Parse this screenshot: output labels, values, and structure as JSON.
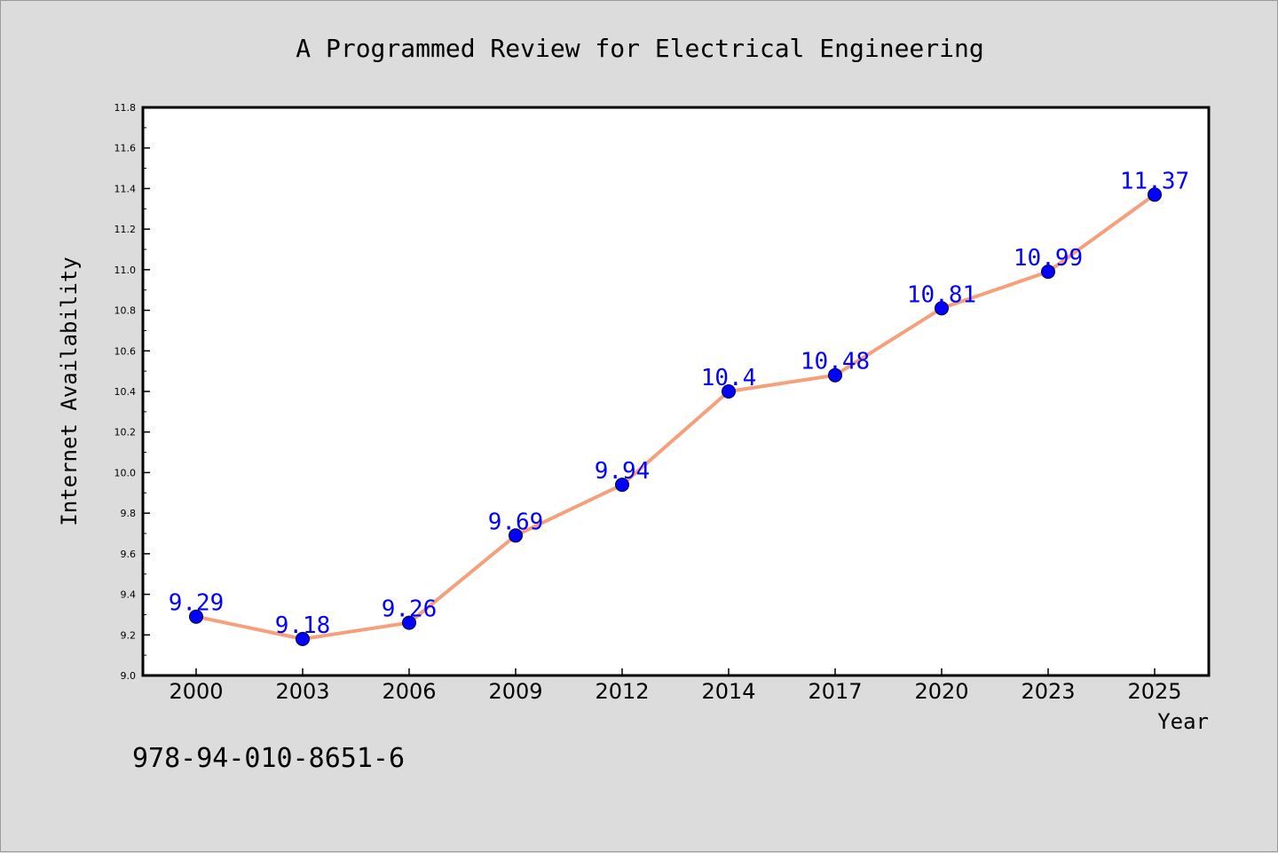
{
  "chart_data": {
    "type": "line",
    "title": "A Programmed Review for Electrical Engineering",
    "xlabel": "Year",
    "ylabel": "Internet Availability",
    "categories": [
      "2000",
      "2003",
      "2006",
      "2009",
      "2012",
      "2014",
      "2017",
      "2020",
      "2023",
      "2025"
    ],
    "series": [
      {
        "values": [
          9.29,
          9.18,
          9.26,
          9.69,
          9.94,
          10.4,
          10.48,
          10.81,
          10.99,
          11.37
        ]
      }
    ],
    "data_labels": [
      "9.29",
      "9.18",
      "9.26",
      "9.69",
      "9.94",
      "10.4",
      "10.48",
      "10.81",
      "10.99",
      "11.37"
    ],
    "ylim": [
      9.0,
      11.8
    ],
    "yticks": [
      "9.0",
      "9.2",
      "9.4",
      "9.6",
      "9.8",
      "10.0",
      "10.2",
      "10.4",
      "10.6",
      "10.8",
      "11.0",
      "11.2",
      "11.4",
      "11.6",
      "11.8"
    ],
    "grid": false,
    "colors": {
      "line": "#f5a07a",
      "marker": "#0000ff",
      "label": "#0000ff",
      "background": "#dcdcdc",
      "plot_background": "#ffffff"
    }
  },
  "footer": {
    "isbn": "978-94-010-8651-6"
  }
}
